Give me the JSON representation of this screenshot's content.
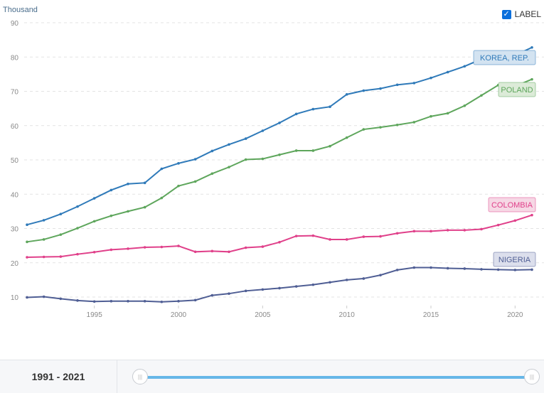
{
  "controls": {
    "label_toggle": "LABEL",
    "label_checked": true,
    "checkmark": "✓"
  },
  "footer": {
    "range_text": "1991 - 2021",
    "slider_start": 1991,
    "slider_end": 2021,
    "handle_glyph": "|||"
  },
  "chart_data": {
    "type": "line",
    "ylabel": "Thousand",
    "ylim": [
      10,
      90
    ],
    "yticks": [
      "10",
      "20",
      "30",
      "40",
      "50",
      "60",
      "70",
      "80",
      "90"
    ],
    "xlim": [
      1991,
      2021
    ],
    "xticks": [
      "1995",
      "2000",
      "2005",
      "2010",
      "2015",
      "2020"
    ],
    "grid": true,
    "x": [
      1991,
      1992,
      1993,
      1994,
      1995,
      1996,
      1997,
      1998,
      1999,
      2000,
      2001,
      2002,
      2003,
      2004,
      2005,
      2006,
      2007,
      2008,
      2009,
      2010,
      2011,
      2012,
      2013,
      2014,
      2015,
      2016,
      2017,
      2018,
      2019,
      2020,
      2021
    ],
    "series": [
      {
        "name": "KOREA, REP.",
        "color": "#2f7ab9",
        "label_bg": "#d3e3f1",
        "values": [
          31.1,
          32.4,
          34.2,
          36.4,
          38.8,
          41.2,
          43.0,
          43.3,
          47.4,
          49.0,
          50.2,
          52.6,
          54.5,
          56.2,
          58.5,
          60.8,
          63.4,
          64.8,
          65.5,
          69.1,
          70.2,
          70.8,
          71.9,
          72.4,
          73.9,
          75.6,
          77.3,
          79.4,
          80.0,
          80.5,
          82.8
        ]
      },
      {
        "name": "POLAND",
        "color": "#5ea65c",
        "label_bg": "#dcebd8",
        "values": [
          26.1,
          26.8,
          28.2,
          30.1,
          32.1,
          33.7,
          35.0,
          36.2,
          38.9,
          42.4,
          43.7,
          46.0,
          47.9,
          50.1,
          50.3,
          51.5,
          52.7,
          52.7,
          54.0,
          56.5,
          58.9,
          59.5,
          60.2,
          61.0,
          62.7,
          63.6,
          65.8,
          68.8,
          71.8,
          71.5,
          73.5
        ]
      },
      {
        "name": "COLOMBIA",
        "color": "#e0408a",
        "label_bg": "#f6d8e5",
        "values": [
          21.6,
          21.7,
          21.8,
          22.5,
          23.1,
          23.8,
          24.1,
          24.5,
          24.6,
          24.9,
          23.2,
          23.4,
          23.2,
          24.4,
          24.7,
          26.0,
          27.8,
          27.9,
          26.8,
          26.8,
          27.6,
          27.7,
          28.6,
          29.2,
          29.2,
          29.5,
          29.5,
          29.8,
          31.0,
          32.3,
          33.9
        ]
      },
      {
        "name": "NIGERIA",
        "color": "#4f5e94",
        "label_bg": "#dcdfec",
        "values": [
          9.9,
          10.1,
          9.5,
          9.0,
          8.7,
          8.8,
          8.8,
          8.8,
          8.6,
          8.8,
          9.1,
          10.5,
          11.0,
          11.8,
          12.2,
          12.6,
          13.1,
          13.6,
          14.3,
          15.0,
          15.4,
          16.4,
          17.9,
          18.6,
          18.6,
          18.4,
          18.3,
          18.1,
          18.0,
          17.9,
          18.0
        ]
      }
    ]
  }
}
